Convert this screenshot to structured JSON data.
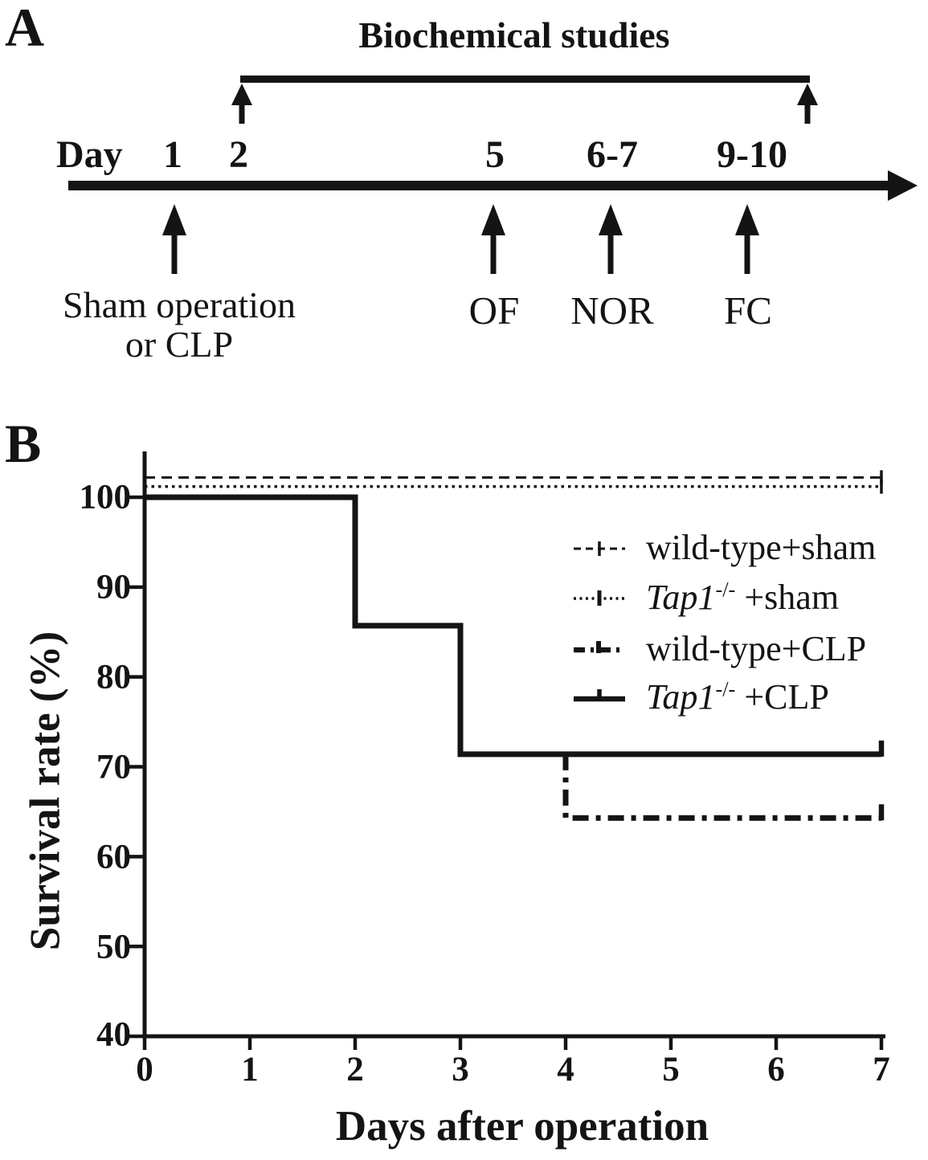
{
  "panel_a": {
    "label": "A",
    "title": "Biochemical studies",
    "axis_word": "Day",
    "day_ticks": [
      "1",
      "2",
      "5",
      "6-7",
      "9-10"
    ],
    "events": {
      "surgery_line1": "Sham operation",
      "surgery_line2": "or CLP",
      "of": "OF",
      "nor": "NOR",
      "fc": "FC"
    }
  },
  "panel_b": {
    "label": "B"
  },
  "chart_data": {
    "type": "line",
    "subtype": "kaplan_meier_step_survival",
    "title": "",
    "xlabel": "Days after operation",
    "ylabel": "Survival rate (%)",
    "xlim": [
      0,
      7
    ],
    "ylim": [
      40,
      105
    ],
    "grid": false,
    "legend_position": "upper right inside plot",
    "line_color": "#141414",
    "x_ticks": [
      0,
      1,
      2,
      3,
      4,
      5,
      6,
      7
    ],
    "x_tick_labels": [
      "0",
      "1",
      "2",
      "3",
      "4",
      "5",
      "6",
      "7"
    ],
    "y_ticks": [
      100,
      90,
      80,
      70,
      60,
      50,
      40
    ],
    "y_tick_labels": [
      "100",
      "90",
      "80",
      "70",
      "60",
      "50",
      "40"
    ],
    "series": [
      {
        "name": "wild-type+sham",
        "label_parts": {
          "plain": "wild-type+sham",
          "italic": "",
          "sup": "",
          "rest": ""
        },
        "line_style": "dashed",
        "stroke_width": 3,
        "dash": "13 8",
        "data_steps": {
          "x": [
            0,
            7
          ],
          "y": [
            100,
            100
          ]
        },
        "plot_points": [
          [
            0,
            102.2
          ],
          [
            7,
            102.2
          ]
        ],
        "end_tick": {
          "dy1": -9,
          "dy2": 9,
          "w": 3.5
        }
      },
      {
        "name": "Tap1-/-+sham",
        "label_parts": {
          "plain": "",
          "italic": "Tap1",
          "sup": "-/-",
          "rest": " +sham"
        },
        "line_style": "dotted",
        "stroke_width": 3.5,
        "dash": "3.5 5",
        "data_steps": {
          "x": [
            0,
            7
          ],
          "y": [
            100,
            100
          ]
        },
        "plot_points": [
          [
            0,
            101.2
          ],
          [
            7,
            101.2
          ]
        ],
        "end_tick": {
          "dy1": -9,
          "dy2": 9,
          "w": 3.5
        }
      },
      {
        "name": "wild-type+CLP",
        "label_parts": {
          "plain": "wild-type+CLP",
          "italic": "",
          "sup": "",
          "rest": ""
        },
        "line_style": "dashdot",
        "stroke_width": 7,
        "dash": "20 9 6 9",
        "data_steps": {
          "x": [
            0,
            2,
            2,
            3,
            3,
            4,
            4,
            7
          ],
          "y": [
            100,
            100,
            85.7,
            85.7,
            71.4,
            71.4,
            64.3,
            64.3
          ]
        },
        "plot_points": [
          [
            4,
            71.4
          ],
          [
            4,
            64.3
          ],
          [
            7,
            64.3
          ]
        ],
        "end_tick": {
          "dy1": -17,
          "dy2": 3,
          "w": 6.5
        }
      },
      {
        "name": "Tap1-/-+CLP",
        "label_parts": {
          "plain": "",
          "italic": "Tap1",
          "sup": "-/-",
          "rest": " +CLP"
        },
        "line_style": "solid",
        "stroke_width": 7,
        "dash": null,
        "data_steps": {
          "x": [
            0,
            2,
            2,
            3,
            3,
            7
          ],
          "y": [
            100,
            100,
            85.7,
            85.7,
            71.4,
            71.4
          ]
        },
        "plot_points": [
          [
            0,
            100
          ],
          [
            2,
            100
          ],
          [
            2,
            85.7
          ],
          [
            3,
            85.7
          ],
          [
            3,
            71.4
          ],
          [
            7,
            71.4
          ]
        ],
        "end_tick": {
          "dy1": -17,
          "dy2": 3,
          "w": 6.5
        }
      }
    ]
  }
}
